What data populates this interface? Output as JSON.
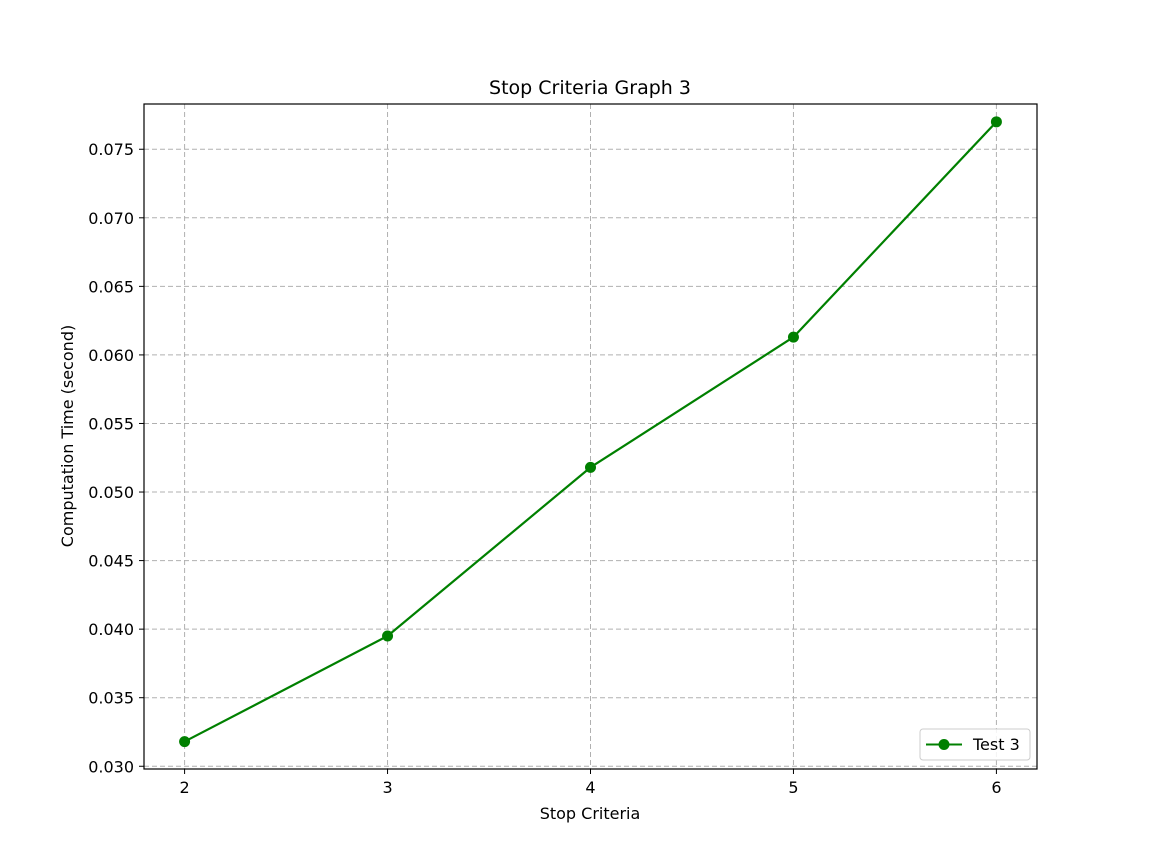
{
  "chart_data": {
    "type": "line",
    "title": "Stop Criteria Graph 3",
    "xlabel": "Stop Criteria",
    "ylabel": "Computation Time (second)",
    "x": [
      2,
      3,
      4,
      5,
      6
    ],
    "xticks": [
      "2",
      "3",
      "4",
      "5",
      "6"
    ],
    "xlim": [
      1.8,
      6.2
    ],
    "ylim": [
      0.0298,
      0.0783
    ],
    "yticks": [
      "0.030",
      "0.035",
      "0.040",
      "0.045",
      "0.050",
      "0.055",
      "0.060",
      "0.065",
      "0.070",
      "0.075"
    ],
    "ytick_values": [
      0.03,
      0.035,
      0.04,
      0.045,
      0.05,
      0.055,
      0.06,
      0.065,
      0.07,
      0.075
    ],
    "grid": true,
    "legend_position": "lower-right",
    "series": [
      {
        "name": "Test 3",
        "color": "#008000",
        "marker": "circle",
        "values": [
          0.0318,
          0.0395,
          0.0518,
          0.0613,
          0.077
        ]
      }
    ]
  }
}
